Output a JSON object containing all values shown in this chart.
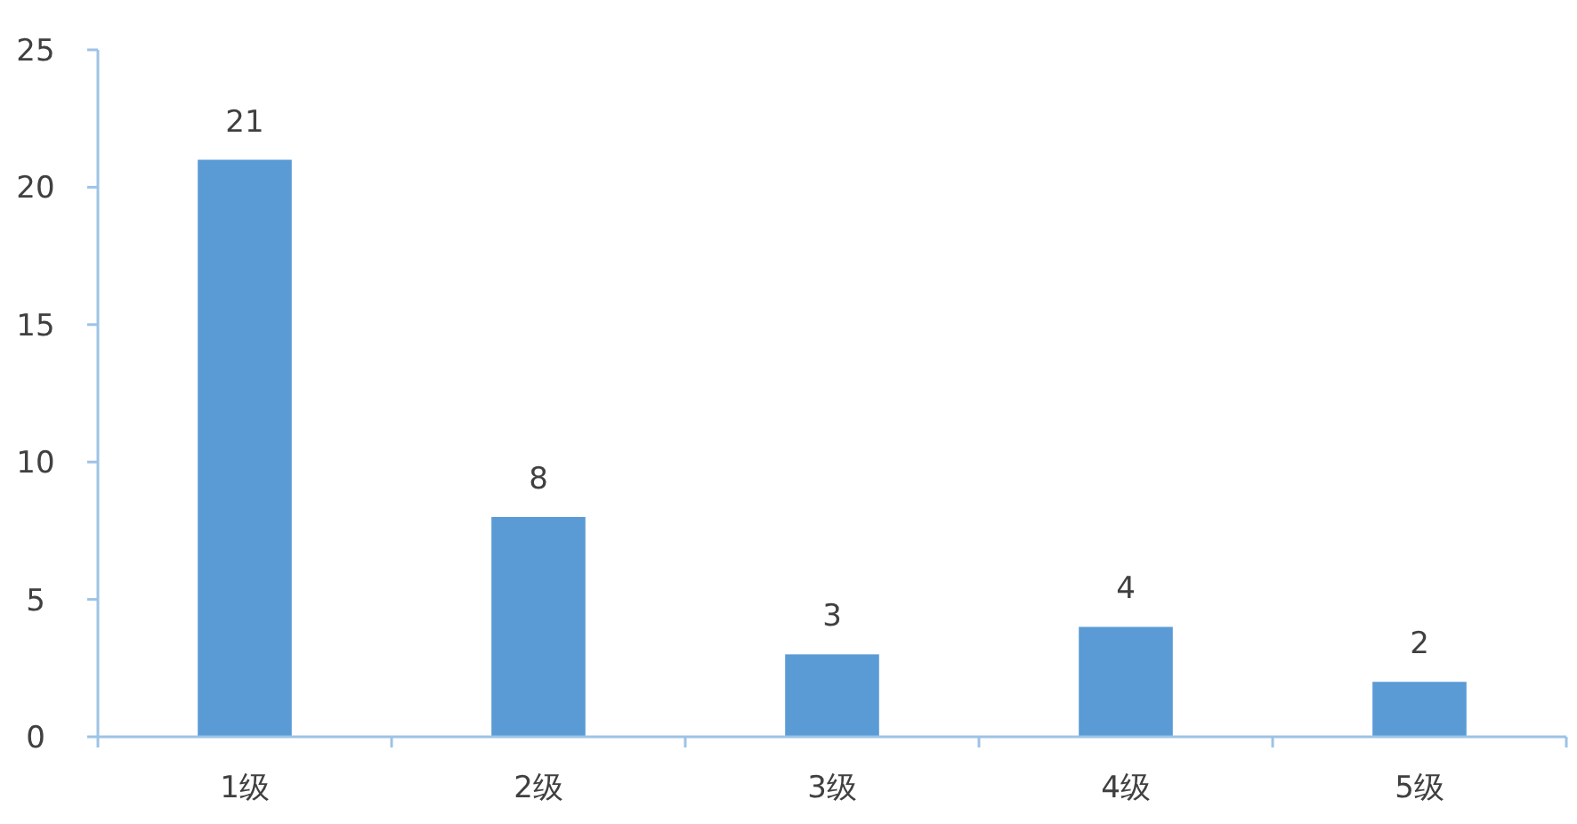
{
  "chart_data": {
    "type": "bar",
    "categories": [
      "1级",
      "2级",
      "3级",
      "4级",
      "5级"
    ],
    "values": [
      21,
      8,
      3,
      4,
      2
    ],
    "color": "#5b9bd5",
    "ylim": [
      0,
      25
    ],
    "yticks": [
      0,
      5,
      10,
      15,
      20,
      25
    ],
    "data_labels": true
  }
}
